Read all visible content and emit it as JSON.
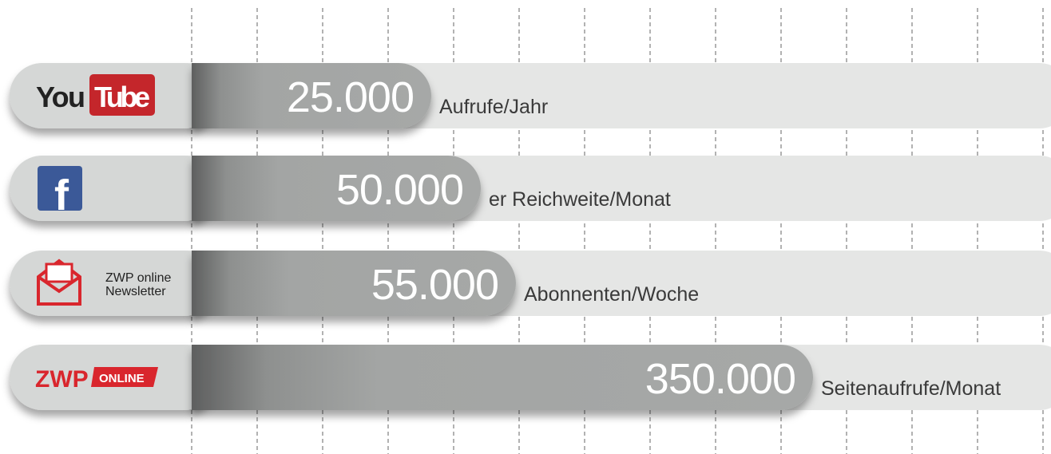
{
  "items": [
    {
      "logo": [
        "You",
        "Tube"
      ],
      "value": "25.000",
      "label": "Aufrufe/Jahr"
    },
    {
      "logo": [
        "f"
      ],
      "value": "50.000",
      "label": "er Reichweite/Monat"
    },
    {
      "logo": [
        "ZWP online",
        "Newsletter"
      ],
      "value": "55.000",
      "label": "Abonnenten/Woche"
    },
    {
      "logo": [
        "ZWP",
        "ONLINE"
      ],
      "value": "350.000",
      "label": "Seitenaufrufe/Monat"
    }
  ]
}
